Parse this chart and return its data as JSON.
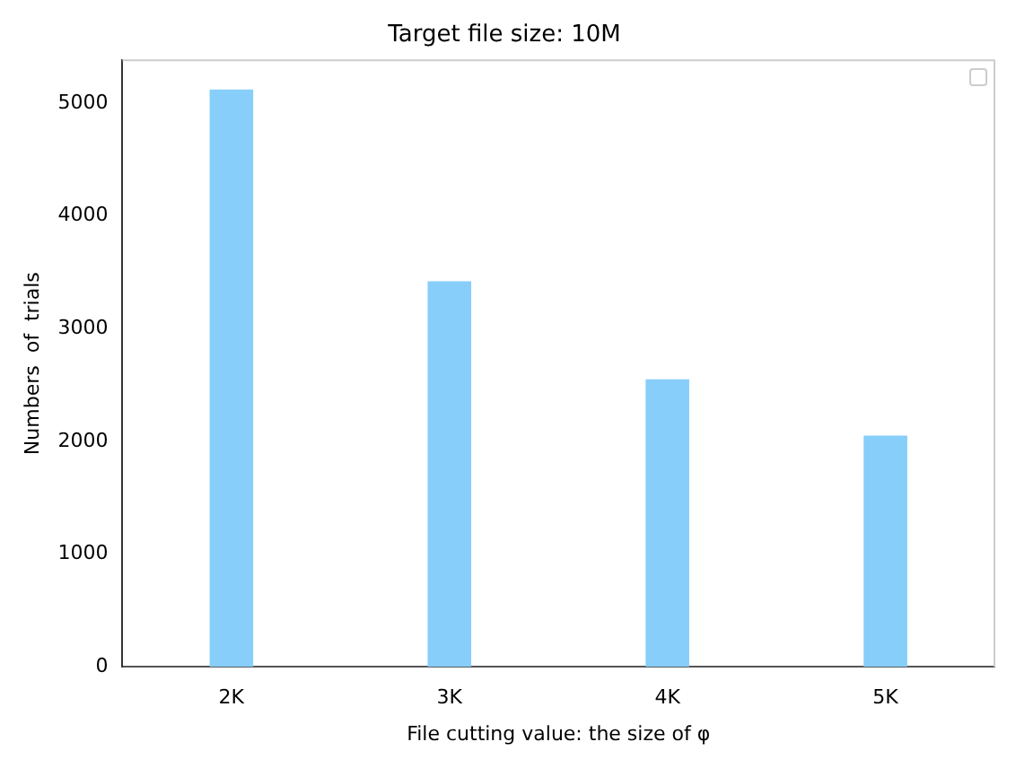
{
  "chart_data": {
    "type": "bar",
    "title": "Target file size: 10M",
    "xlabel": "File cutting value: the size of φ",
    "ylabel": "Numbers  of  trials",
    "categories": [
      "2K",
      "3K",
      "4K",
      "5K"
    ],
    "values": [
      5120,
      3420,
      2550,
      2050
    ],
    "color": "#87cefa",
    "ylim": [
      0,
      5380
    ],
    "yticks": [
      0,
      1000,
      2000,
      3000,
      4000,
      5000
    ],
    "grid": false
  }
}
